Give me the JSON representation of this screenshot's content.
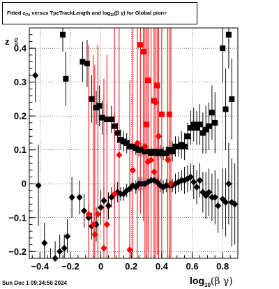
{
  "title": {
    "prefix": "Fitted  z",
    "sub1": "I70",
    "middle": "  versus TpcTrackLength and log",
    "sub2": "10",
    "suffix": "(β  γ) for Global pion+"
  },
  "axis_labels": {
    "y_main": "z",
    "y_sub": "I70",
    "x_main": "log",
    "x_sub": "10",
    "x_greek": "(β γ)"
  },
  "timestamp": "Sun Dec  1 09:34:56 2024",
  "chart_data": {
    "type": "scatter",
    "xlim": [
      -0.47,
      0.9
    ],
    "ylim": [
      -0.22,
      0.46
    ],
    "xticks": [
      -0.4,
      -0.2,
      0,
      0.2,
      0.4,
      0.6,
      0.8
    ],
    "xtick_labels": [
      "−0.4",
      "−0.2",
      "0",
      "0.2",
      "0.4",
      "0.6",
      "0.8"
    ],
    "yticks": [
      -0.2,
      -0.1,
      0,
      0.1,
      0.2,
      0.3,
      0.4
    ],
    "ytick_labels": [
      "−0.2",
      "−0.1",
      "0",
      "0.1",
      "0.2",
      "0.3",
      "0.4"
    ],
    "grid": true,
    "series": [
      {
        "marker": "square",
        "color": "#000000",
        "points": [
          [
            -0.25,
            0.44,
            0.05
          ],
          [
            -0.23,
            0.31,
            0.08
          ],
          [
            -0.12,
            0.36,
            0.06
          ],
          [
            -0.09,
            0.355,
            0.07
          ],
          [
            -0.06,
            0.25,
            0.07
          ],
          [
            -0.03,
            0.225,
            0.05
          ],
          [
            -0.01,
            0.23,
            0.06
          ],
          [
            0.01,
            0.195,
            0.05
          ],
          [
            0.04,
            0.19,
            0.05
          ],
          [
            0.07,
            0.19,
            0.04
          ],
          [
            0.09,
            0.17,
            0.04
          ],
          [
            0.11,
            0.15,
            0.03
          ],
          [
            0.13,
            0.13,
            0.03
          ],
          [
            0.15,
            0.125,
            0.03
          ],
          [
            0.17,
            0.12,
            0.03
          ],
          [
            0.19,
            0.11,
            0.02
          ],
          [
            0.21,
            0.11,
            0.02
          ],
          [
            0.23,
            0.105,
            0.02
          ],
          [
            0.25,
            0.1,
            0.02
          ],
          [
            0.27,
            0.1,
            0.02
          ],
          [
            0.29,
            0.095,
            0.02
          ],
          [
            0.31,
            0.095,
            0.02
          ],
          [
            0.33,
            0.09,
            0.02
          ],
          [
            0.35,
            0.095,
            0.02
          ],
          [
            0.37,
            0.09,
            0.02
          ],
          [
            0.39,
            0.095,
            0.02
          ],
          [
            0.41,
            0.09,
            0.02
          ],
          [
            0.43,
            0.09,
            0.02
          ],
          [
            0.45,
            0.1,
            0.03
          ],
          [
            0.47,
            0.095,
            0.03
          ],
          [
            0.49,
            0.11,
            0.03
          ],
          [
            0.51,
            0.11,
            0.03
          ],
          [
            0.53,
            0.115,
            0.04
          ],
          [
            0.55,
            0.11,
            0.04
          ],
          [
            0.57,
            0.14,
            0.04
          ],
          [
            0.59,
            0.165,
            0.05
          ],
          [
            0.61,
            0.175,
            0.05
          ],
          [
            0.63,
            0.165,
            0.05
          ],
          [
            0.65,
            0.175,
            0.06
          ],
          [
            0.67,
            0.15,
            0.06
          ],
          [
            0.69,
            0.16,
            0.07
          ],
          [
            0.71,
            0.17,
            0.07
          ],
          [
            0.73,
            0.21,
            0.08
          ],
          [
            0.75,
            0.18,
            0.09
          ],
          [
            0.8,
            0.4,
            0.1
          ],
          [
            0.82,
            0.22,
            0.12
          ],
          [
            0.84,
            0.44,
            0.1
          ],
          [
            0.86,
            0.25,
            0.12
          ]
        ]
      },
      {
        "marker": "diamond",
        "color": "#000000",
        "points": [
          [
            -0.43,
            0.32,
            0.08
          ],
          [
            -0.41,
            -0.005,
            0.12
          ],
          [
            -0.37,
            -0.175,
            0.06
          ],
          [
            -0.33,
            -0.23,
            0.04
          ],
          [
            -0.3,
            -0.22,
            0.05
          ],
          [
            -0.27,
            -0.2,
            0.05
          ],
          [
            -0.24,
            -0.19,
            0.04
          ],
          [
            -0.22,
            -0.155,
            0.05
          ],
          [
            -0.19,
            -0.04,
            0.06
          ],
          [
            -0.14,
            -0.04,
            0.05
          ],
          [
            -0.11,
            -0.08,
            0.05
          ],
          [
            -0.08,
            -0.1,
            0.04
          ],
          [
            -0.06,
            -0.125,
            0.04
          ],
          [
            -0.03,
            -0.12,
            0.05
          ],
          [
            0.0,
            -0.07,
            0.05
          ],
          [
            0.02,
            -0.05,
            0.04
          ],
          [
            0.05,
            -0.065,
            0.04
          ],
          [
            0.07,
            -0.04,
            0.03
          ],
          [
            0.09,
            -0.03,
            0.03
          ],
          [
            0.11,
            -0.025,
            0.03
          ],
          [
            0.13,
            -0.03,
            0.02
          ],
          [
            0.15,
            -0.03,
            0.02
          ],
          [
            0.17,
            -0.02,
            0.02
          ],
          [
            0.19,
            -0.015,
            0.02
          ],
          [
            0.21,
            -0.005,
            0.02
          ],
          [
            0.23,
            -0.01,
            0.02
          ],
          [
            0.25,
            0.0,
            0.02
          ],
          [
            0.27,
            0.0,
            0.02
          ],
          [
            0.29,
            0.0,
            0.02
          ],
          [
            0.31,
            0.005,
            0.02
          ],
          [
            0.33,
            0.01,
            0.02
          ],
          [
            0.35,
            0.01,
            0.02
          ],
          [
            0.37,
            0.005,
            0.02
          ],
          [
            0.39,
            -0.005,
            0.02
          ],
          [
            0.41,
            -0.01,
            0.02
          ],
          [
            0.43,
            -0.005,
            0.02
          ],
          [
            0.45,
            -0.005,
            0.02
          ],
          [
            0.47,
            -0.005,
            0.02
          ],
          [
            0.49,
            0.0,
            0.03
          ],
          [
            0.51,
            0.005,
            0.03
          ],
          [
            0.53,
            0.01,
            0.03
          ],
          [
            0.55,
            0.01,
            0.04
          ],
          [
            0.57,
            0.015,
            0.04
          ],
          [
            0.59,
            0.02,
            0.04
          ],
          [
            0.61,
            0.005,
            0.05
          ],
          [
            0.63,
            -0.01,
            0.05
          ],
          [
            0.65,
            0.01,
            0.05
          ],
          [
            0.67,
            -0.025,
            0.06
          ],
          [
            0.69,
            -0.035,
            0.07
          ],
          [
            0.71,
            -0.025,
            0.07
          ],
          [
            0.73,
            -0.04,
            0.07
          ],
          [
            0.75,
            -0.04,
            0.08
          ],
          [
            0.77,
            -0.065,
            0.08
          ],
          [
            0.8,
            -0.045,
            0.09
          ],
          [
            0.82,
            -0.055,
            0.1
          ],
          [
            0.84,
            0.0,
            0.12
          ],
          [
            0.86,
            -0.055,
            0.13
          ],
          [
            0.88,
            -0.06,
            0.12
          ]
        ]
      },
      {
        "marker": "square",
        "color": "#ff0000",
        "points": [
          [
            0.26,
            0.41,
            0.5
          ],
          [
            0.28,
            0.39,
            0.5
          ],
          [
            0.31,
            0.305,
            0.5
          ],
          [
            0.35,
            0.245,
            0.5
          ],
          [
            0.37,
            0.29,
            0.5
          ],
          [
            0.4,
            0.205,
            0.5
          ],
          [
            0.45,
            0.205,
            0.5
          ],
          [
            0.3,
            0.175,
            0.5
          ]
        ]
      },
      {
        "marker": "diamond",
        "color": "#ff0000",
        "points": [
          [
            -0.08,
            -0.09,
            0.5
          ],
          [
            -0.05,
            -0.12,
            0.5
          ],
          [
            -0.04,
            -0.15,
            0.5
          ],
          [
            -0.02,
            -0.09,
            0.5
          ],
          [
            0.02,
            -0.19,
            0.5
          ],
          [
            0.04,
            -0.12,
            0.5
          ],
          [
            0.09,
            -0.03,
            0.5
          ],
          [
            0.12,
            0.085,
            0.5
          ],
          [
            0.19,
            -0.195,
            0.5
          ],
          [
            0.21,
            0.04,
            0.5
          ],
          [
            0.24,
            0.12,
            0.5
          ],
          [
            0.29,
            0.11,
            0.5
          ],
          [
            0.31,
            0.065,
            0.5
          ],
          [
            0.33,
            0.07,
            0.5
          ],
          [
            0.35,
            0.035,
            0.5
          ],
          [
            0.36,
            0.24,
            0.5
          ],
          [
            0.38,
            0.14,
            0.5
          ],
          [
            0.44,
            0.07,
            0.5
          ],
          [
            0.46,
            0.0,
            0.5
          ]
        ]
      }
    ]
  }
}
